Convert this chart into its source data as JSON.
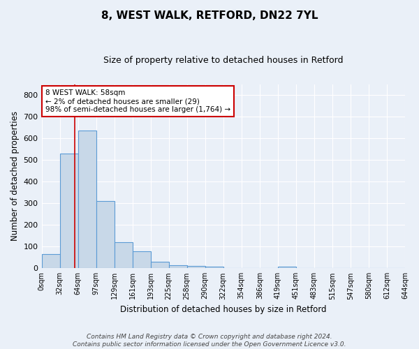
{
  "title": "8, WEST WALK, RETFORD, DN22 7YL",
  "subtitle": "Size of property relative to detached houses in Retford",
  "xlabel": "Distribution of detached houses by size in Retford",
  "ylabel": "Number of detached properties",
  "bar_values": [
    65,
    530,
    635,
    310,
    120,
    78,
    30,
    14,
    10,
    8,
    0,
    0,
    0,
    7,
    0,
    0,
    0,
    0,
    0,
    0
  ],
  "bar_labels": [
    "0sqm",
    "32sqm",
    "64sqm",
    "97sqm",
    "129sqm",
    "161sqm",
    "193sqm",
    "225sqm",
    "258sqm",
    "290sqm",
    "322sqm",
    "354sqm",
    "386sqm",
    "419sqm",
    "451sqm",
    "483sqm",
    "515sqm",
    "547sqm",
    "580sqm",
    "612sqm",
    "644sqm"
  ],
  "bar_color": "#c8d8e8",
  "bar_edge_color": "#5b9bd5",
  "ylim": [
    0,
    850
  ],
  "yticks": [
    0,
    100,
    200,
    300,
    400,
    500,
    600,
    700,
    800
  ],
  "vline_x": 1.82,
  "vline_color": "#cc0000",
  "annotation_text": "8 WEST WALK: 58sqm\n← 2% of detached houses are smaller (29)\n98% of semi-detached houses are larger (1,764) →",
  "annotation_box_color": "#ffffff",
  "annotation_box_edge": "#cc0000",
  "footer": "Contains HM Land Registry data © Crown copyright and database right 2024.\nContains public sector information licensed under the Open Government Licence v3.0.",
  "background_color": "#eaf0f8",
  "grid_color": "#ffffff"
}
